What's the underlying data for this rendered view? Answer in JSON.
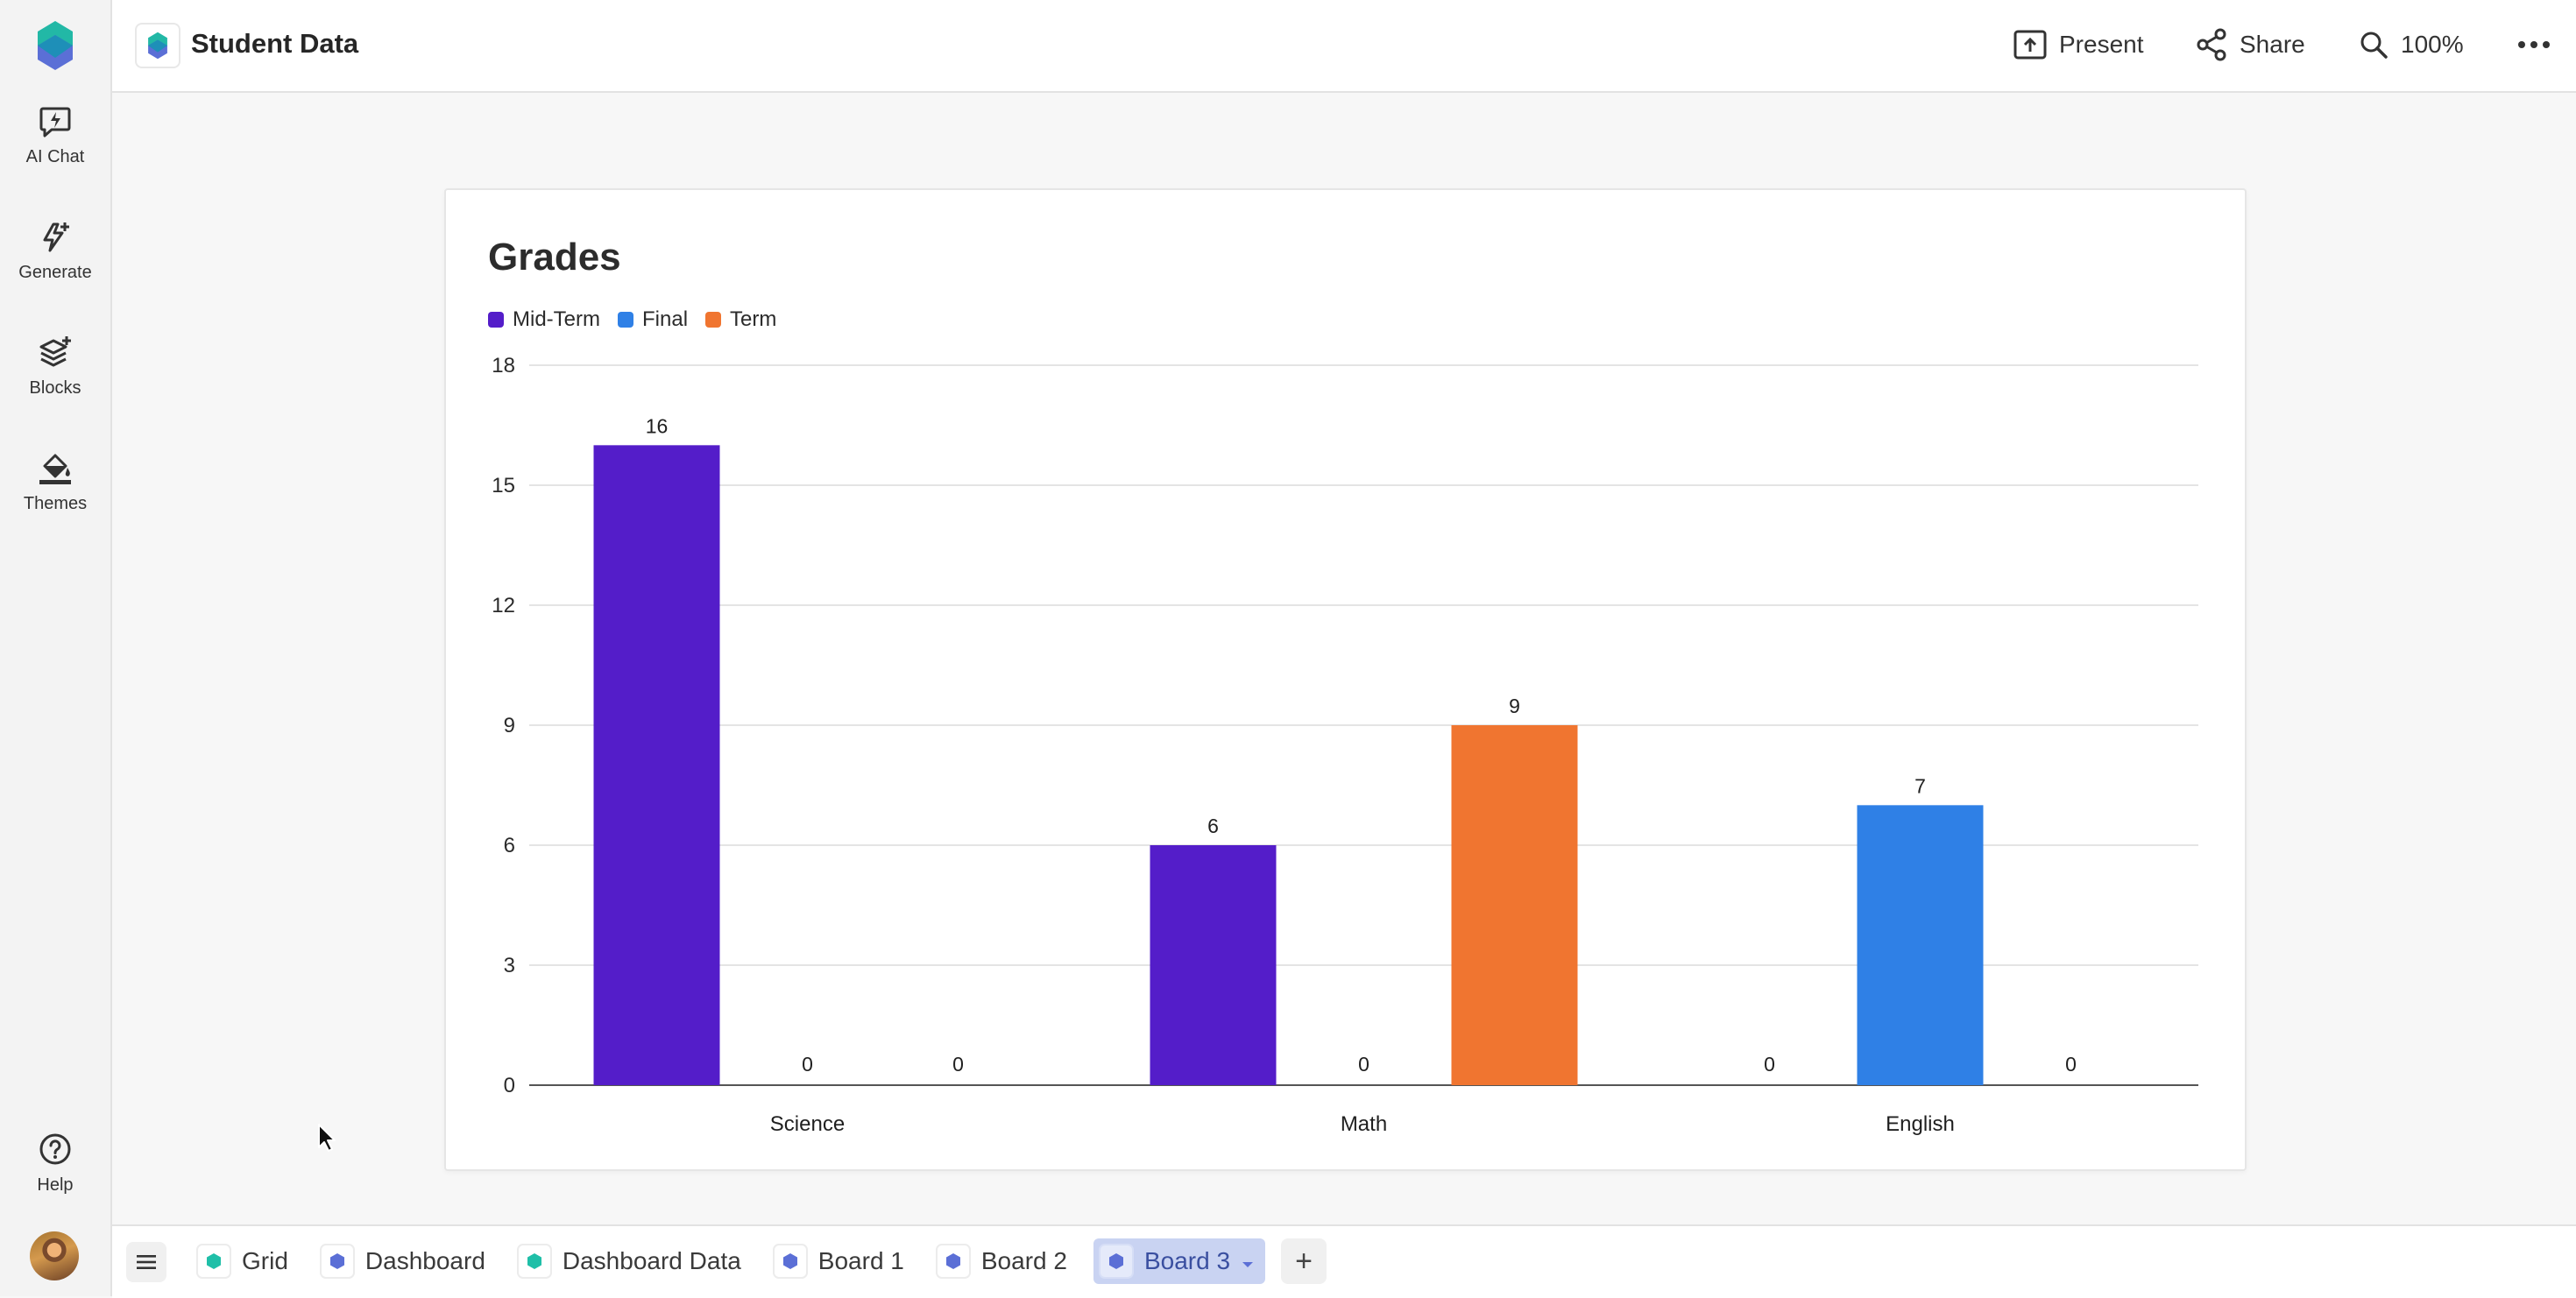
{
  "header": {
    "doc_title": "Student Data",
    "present_label": "Present",
    "share_label": "Share",
    "zoom_label": "100%"
  },
  "rail": {
    "items": [
      {
        "label": "AI Chat",
        "icon": "ai-chat-icon"
      },
      {
        "label": "Generate",
        "icon": "generate-icon"
      },
      {
        "label": "Blocks",
        "icon": "blocks-icon"
      },
      {
        "label": "Themes",
        "icon": "themes-icon"
      }
    ],
    "help_label": "Help"
  },
  "tabs": [
    {
      "label": "Grid",
      "icon_color": "#1fbfa8",
      "active": false
    },
    {
      "label": "Dashboard",
      "icon_color": "#5b6fd6",
      "active": false
    },
    {
      "label": "Dashboard Data",
      "icon_color": "#1fbfa8",
      "active": false
    },
    {
      "label": "Board 1",
      "icon_color": "#5b6fd6",
      "active": false
    },
    {
      "label": "Board 2",
      "icon_color": "#5b6fd6",
      "active": false
    },
    {
      "label": "Board 3",
      "icon_color": "#5b6fd6",
      "active": true
    }
  ],
  "add_tab_label": "+",
  "chart_data": {
    "type": "bar",
    "title": "Grades",
    "categories": [
      "Science",
      "Math",
      "English"
    ],
    "series": [
      {
        "name": "Mid-Term",
        "color": "#541dc9",
        "values": [
          16,
          6,
          0
        ]
      },
      {
        "name": "Final",
        "color": "#2f80e6",
        "values": [
          0,
          0,
          7
        ]
      },
      {
        "name": "Term",
        "color": "#f07530",
        "values": [
          0,
          9,
          0
        ]
      }
    ],
    "ylim": [
      0,
      18
    ],
    "yticks": [
      0,
      3,
      6,
      9,
      12,
      15,
      18
    ],
    "grid": true,
    "legend_position": "top-left",
    "data_labels": true
  }
}
